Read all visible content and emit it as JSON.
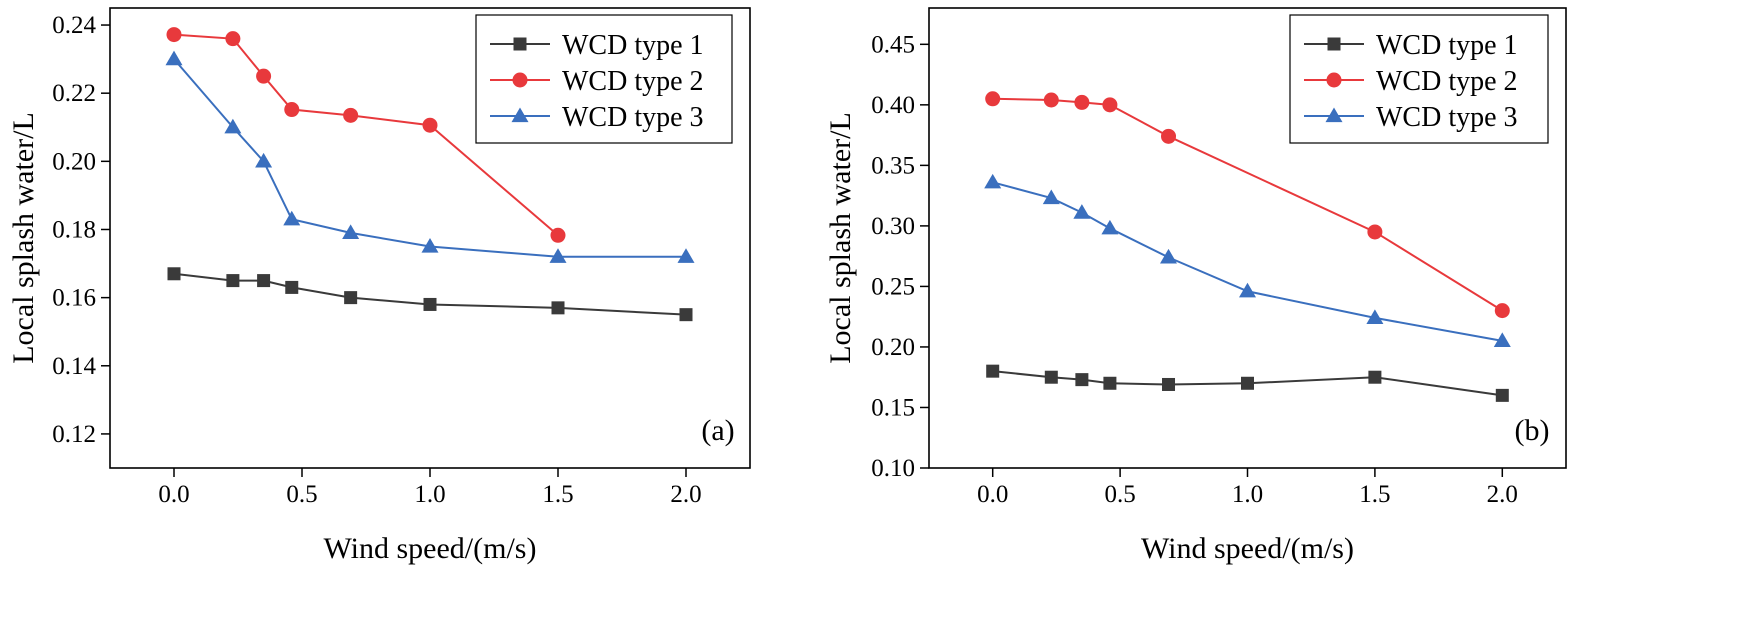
{
  "chart_data": [
    {
      "type": "line",
      "panel_label": "(a)",
      "xlabel": "Wind speed/(m/s)",
      "ylabel": "Local splash water/L",
      "xlim": [
        -0.25,
        2.25
      ],
      "ylim": [
        0.11,
        0.245
      ],
      "xticks": [
        0.0,
        0.5,
        1.0,
        1.5,
        2.0
      ],
      "xtick_labels": [
        "0.0",
        "0.5",
        "1.0",
        "1.5",
        "2.0"
      ],
      "yticks": [
        0.12,
        0.14,
        0.16,
        0.18,
        0.2,
        0.22,
        0.24
      ],
      "ytick_labels": [
        "0.12",
        "0.14",
        "0.16",
        "0.18",
        "0.20",
        "0.22",
        "0.24"
      ],
      "legend_position": "top-right",
      "series": [
        {
          "name": "WCD type 1",
          "color": "#3a3a3a",
          "marker": "square",
          "x": [
            0.0,
            0.23,
            0.35,
            0.46,
            0.69,
            1.0,
            1.5,
            2.0
          ],
          "y": [
            0.167,
            0.165,
            0.165,
            0.163,
            0.16,
            0.158,
            0.157,
            0.155
          ]
        },
        {
          "name": "WCD type 2",
          "color": "#e8393c",
          "marker": "circle",
          "x": [
            0.0,
            0.23,
            0.35,
            0.46,
            0.69,
            1.0,
            1.5
          ],
          "y": [
            0.2372,
            0.236,
            0.225,
            0.2152,
            0.2135,
            0.2106,
            0.1783
          ]
        },
        {
          "name": "WCD type 3",
          "color": "#3a6fbe",
          "marker": "triangle",
          "x": [
            0.0,
            0.23,
            0.35,
            0.46,
            0.69,
            1.0,
            1.5,
            2.0
          ],
          "y": [
            0.23,
            0.21,
            0.2,
            0.183,
            0.179,
            0.175,
            0.172,
            0.172
          ]
        }
      ]
    },
    {
      "type": "line",
      "panel_label": "(b)",
      "xlabel": "Wind speed/(m/s)",
      "ylabel": "Local splash water/L",
      "xlim": [
        -0.25,
        2.25
      ],
      "ylim": [
        0.1,
        0.48
      ],
      "xticks": [
        0.0,
        0.5,
        1.0,
        1.5,
        2.0
      ],
      "xtick_labels": [
        "0.0",
        "0.5",
        "1.0",
        "1.5",
        "2.0"
      ],
      "yticks": [
        0.1,
        0.15,
        0.2,
        0.25,
        0.3,
        0.35,
        0.4,
        0.45
      ],
      "ytick_labels": [
        "0.10",
        "0.15",
        "0.20",
        "0.25",
        "0.30",
        "0.35",
        "0.40",
        "0.45"
      ],
      "legend_position": "top-right",
      "series": [
        {
          "name": "WCD type 1",
          "color": "#3a3a3a",
          "marker": "square",
          "x": [
            0.0,
            0.23,
            0.35,
            0.46,
            0.69,
            1.0,
            1.5,
            2.0
          ],
          "y": [
            0.18,
            0.175,
            0.173,
            0.17,
            0.169,
            0.17,
            0.175,
            0.16
          ]
        },
        {
          "name": "WCD type 2",
          "color": "#e8393c",
          "marker": "circle",
          "x": [
            0.0,
            0.23,
            0.35,
            0.46,
            0.69,
            1.5,
            2.0
          ],
          "y": [
            0.405,
            0.404,
            0.402,
            0.4,
            0.374,
            0.295,
            0.23
          ]
        },
        {
          "name": "WCD type 3",
          "color": "#3a6fbe",
          "marker": "triangle",
          "x": [
            0.0,
            0.23,
            0.35,
            0.46,
            0.69,
            1.0,
            1.5,
            2.0
          ],
          "y": [
            0.336,
            0.323,
            0.311,
            0.298,
            0.274,
            0.246,
            0.224,
            0.205
          ]
        }
      ]
    }
  ]
}
